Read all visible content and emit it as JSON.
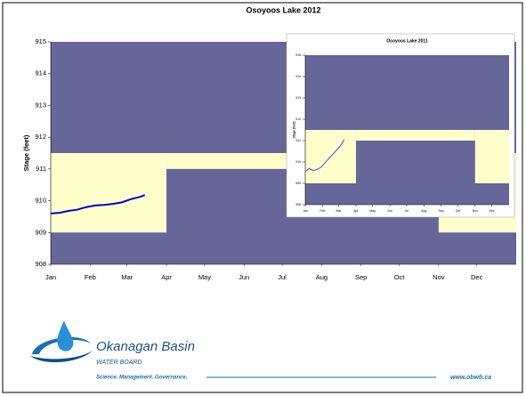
{
  "chart_data": [
    {
      "type": "line",
      "title": "Osoyoos Lake 2012",
      "ylabel": "Stage (feet)",
      "xlim": [
        1,
        367
      ],
      "ylim": [
        908,
        915
      ],
      "yticks": [
        908,
        909,
        910,
        911,
        912,
        913,
        914,
        915
      ],
      "xticks": [
        {
          "value": 1,
          "label": "Jan"
        },
        {
          "value": 32,
          "label": "Feb"
        },
        {
          "value": 61,
          "label": "Mar"
        },
        {
          "value": 92,
          "label": "Apr"
        },
        {
          "value": 122,
          "label": "May"
        },
        {
          "value": 153,
          "label": "Jun"
        },
        {
          "value": 183,
          "label": "Jul"
        },
        {
          "value": 214,
          "label": "Aug"
        },
        {
          "value": 245,
          "label": "Sep"
        },
        {
          "value": 275,
          "label": "Oct"
        },
        {
          "value": 306,
          "label": "Nov"
        },
        {
          "value": 336,
          "label": "Dec"
        }
      ],
      "background_color": "#666699",
      "band_color": "#ffffcc",
      "bands": [
        {
          "x": [
            1,
            92
          ],
          "y": [
            909,
            911.5
          ]
        },
        {
          "x": [
            92,
            306
          ],
          "y": [
            911,
            911.5
          ]
        },
        {
          "x": [
            306,
            367
          ],
          "y": [
            909,
            911.5
          ]
        }
      ],
      "series": [
        {
          "color": "#0000cc",
          "x": [
            1,
            8,
            15,
            22,
            29,
            36,
            43,
            50,
            57,
            64,
            71,
            75
          ],
          "values": [
            909.6,
            909.62,
            909.68,
            909.72,
            909.8,
            909.85,
            909.87,
            909.9,
            909.95,
            910.05,
            910.12,
            910.18
          ]
        }
      ]
    },
    {
      "type": "line",
      "title": "Osoyoos Lake 2011",
      "ylabel": "Stage (feet)",
      "xlim": [
        1,
        367
      ],
      "ylim": [
        908,
        915
      ],
      "yticks": [
        908,
        909,
        910,
        911,
        912,
        913,
        914,
        915
      ],
      "xticks": [
        {
          "value": 1,
          "label": "Jan"
        },
        {
          "value": 32,
          "label": "Feb"
        },
        {
          "value": 61,
          "label": "Mar"
        },
        {
          "value": 92,
          "label": "Apr"
        },
        {
          "value": 122,
          "label": "May"
        },
        {
          "value": 153,
          "label": "Jun"
        },
        {
          "value": 183,
          "label": "Jul"
        },
        {
          "value": 214,
          "label": "Aug"
        },
        {
          "value": 245,
          "label": "Sep"
        },
        {
          "value": 275,
          "label": "Oct"
        },
        {
          "value": 306,
          "label": "Nov"
        },
        {
          "value": 336,
          "label": "Dec"
        }
      ],
      "background_color": "#666699",
      "band_color": "#ffffcc",
      "bands": [
        {
          "x": [
            1,
            92
          ],
          "y": [
            909,
            911.5
          ]
        },
        {
          "x": [
            92,
            306
          ],
          "y": [
            911,
            911.5
          ]
        },
        {
          "x": [
            306,
            367
          ],
          "y": [
            909,
            911.5
          ]
        }
      ],
      "series": [
        {
          "color": "#6666cc",
          "x": [
            1,
            8,
            15,
            22,
            29,
            36,
            43,
            50,
            57,
            64,
            71
          ],
          "values": [
            909.55,
            909.7,
            909.6,
            909.65,
            909.75,
            909.95,
            910.15,
            910.35,
            910.55,
            910.75,
            911.05
          ]
        }
      ]
    }
  ],
  "footer": {
    "name": "Okanagan Basin",
    "subname": "WATER BOARD",
    "tagline": "Science. Management. Governance.",
    "url": "www.obwb.ca"
  }
}
